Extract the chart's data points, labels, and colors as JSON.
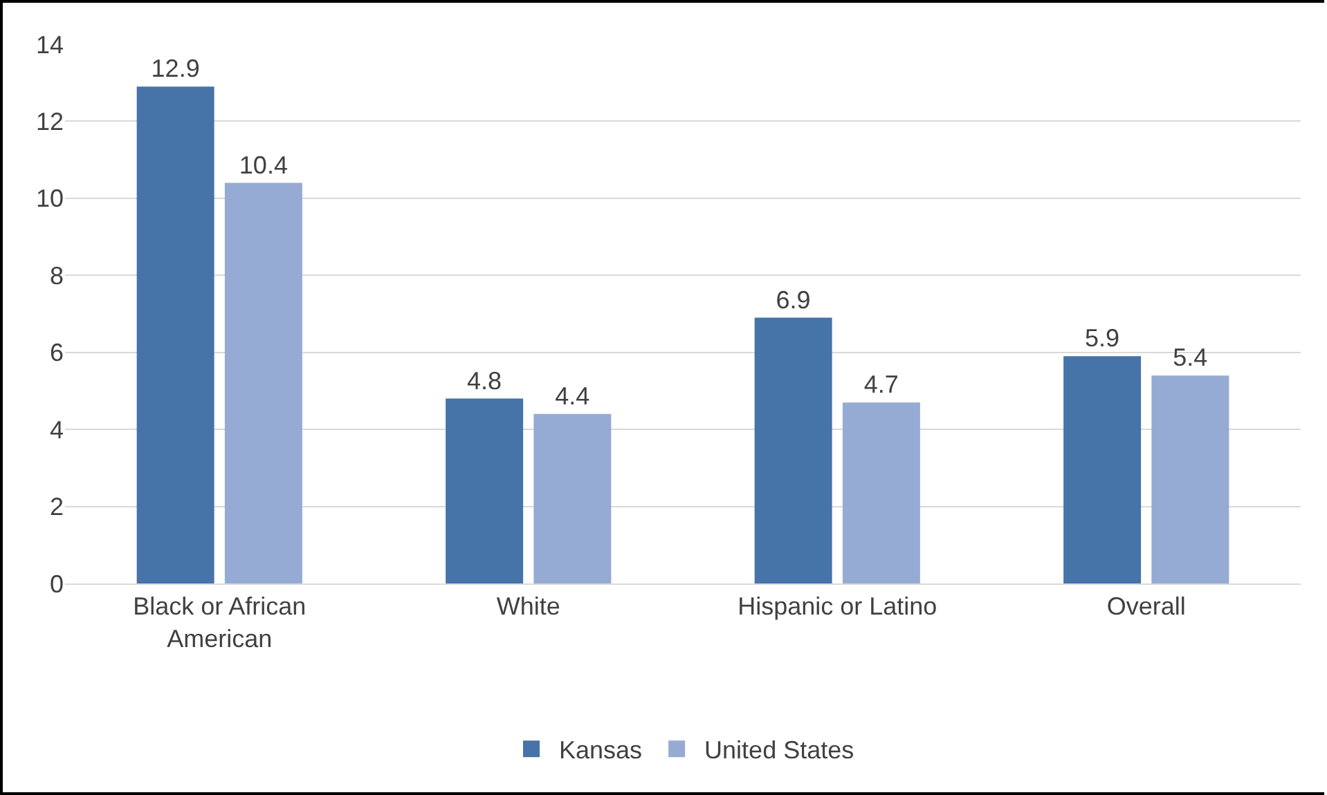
{
  "chart_data": {
    "type": "bar",
    "categories": [
      "Black or African American",
      "White",
      "Hispanic or Latino",
      "Overall"
    ],
    "series": [
      {
        "name": "Kansas",
        "color": "#4673a8",
        "values": [
          12.9,
          4.8,
          6.9,
          5.9
        ]
      },
      {
        "name": "United States",
        "color": "#95abd3",
        "values": [
          10.4,
          4.4,
          4.7,
          5.4
        ]
      }
    ],
    "ylim": [
      0,
      14
    ],
    "yticks": [
      0,
      2,
      4,
      6,
      8,
      10,
      12,
      14
    ],
    "grid": "y",
    "legend": "bottom",
    "data_labels": true
  }
}
